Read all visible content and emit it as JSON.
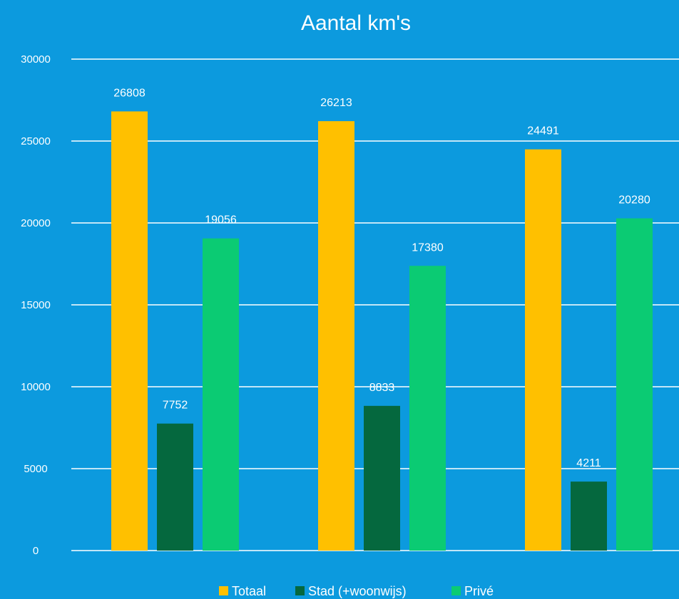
{
  "chart_data": {
    "type": "bar",
    "title": "Aantal km's",
    "xlabel": "",
    "ylabel": "",
    "categories": [
      "",
      "",
      ""
    ],
    "series": [
      {
        "name": "Totaal",
        "color": "#FFC000",
        "values": [
          26808,
          26213,
          24491
        ]
      },
      {
        "name": "Stad (+woonwijs)",
        "color": "#05683E",
        "values": [
          7752,
          8833,
          4211
        ]
      },
      {
        "name": "Privé",
        "color": "#0BCB73",
        "values": [
          19056,
          17380,
          20280
        ]
      }
    ],
    "ylim": [
      0,
      30000
    ],
    "yticks": [
      "0",
      "5000",
      "10000",
      "15000",
      "20000",
      "25000",
      "30000"
    ],
    "grid": true,
    "legend_position": "bottom",
    "background_color": "#0C9ADE",
    "gridline_color": "#FFFFFF"
  }
}
